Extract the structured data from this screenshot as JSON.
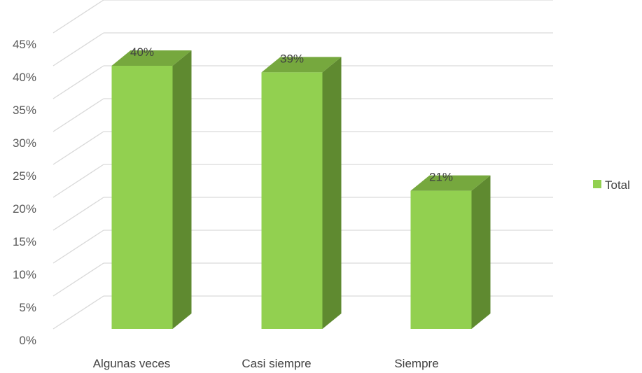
{
  "chart_data": {
    "type": "bar",
    "style": "3d-column",
    "categories": [
      "Algunas veces",
      "Casi siempre",
      "Siempre"
    ],
    "series": [
      {
        "name": "Total",
        "values": [
          40,
          39,
          21
        ]
      }
    ],
    "data_labels": [
      "40%",
      "39%",
      "21%"
    ],
    "y_tick_labels": [
      "0%",
      "5%",
      "10%",
      "15%",
      "20%",
      "25%",
      "30%",
      "35%",
      "40%",
      "45%"
    ],
    "ylim": [
      0,
      45
    ],
    "grid": true,
    "legend_position": "right",
    "colors": {
      "bar_front": "#92d050",
      "bar_side": "#5f8a30",
      "bar_top": "#76a83e",
      "gridline": "#d9d9d9"
    }
  }
}
